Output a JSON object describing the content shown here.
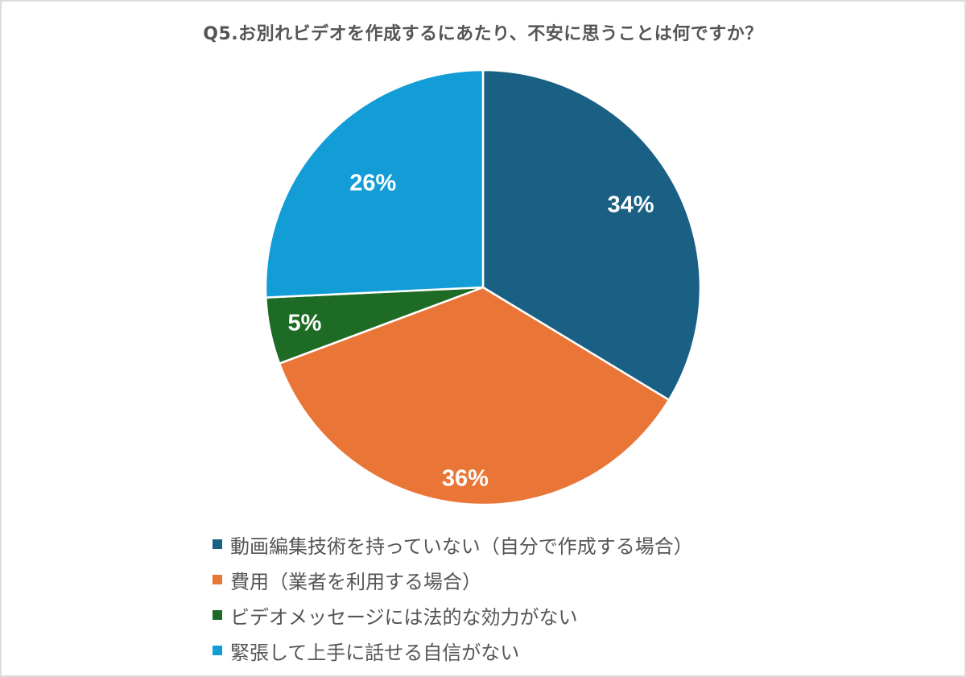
{
  "chart_data": {
    "type": "pie",
    "title": "Q5.お別れビデオを作成するにあたり、不安に思うことは何ですか？",
    "start_angle": "12 o'clock, clockwise",
    "slices": [
      {
        "label": "動画編集技術を持っていない（自分で作成する場合）",
        "value": 34,
        "display": "34%",
        "color": "#1a6084"
      },
      {
        "label": "費用（業者を利用する場合）",
        "value": 36,
        "display": "36%",
        "color": "#e97536"
      },
      {
        "label": "ビデオメッセージには法的な効力がない",
        "value": 5,
        "display": "5%",
        "color": "#1d6b25"
      },
      {
        "label": "緊張して上手に話せる自信がない",
        "value": 26,
        "display": "26%",
        "color": "#139dd6"
      }
    ],
    "legend_position": "bottom",
    "data_labels": "inside, white, bold, percent"
  }
}
